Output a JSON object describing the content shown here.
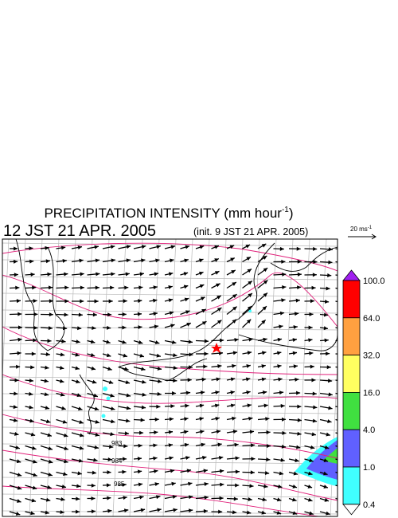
{
  "title": {
    "text": "PRECIPITATION INTENSITY (mm hour",
    "sup": "-1",
    "close": ")"
  },
  "valid_time": "12 JST 21 APR. 2005",
  "init_time": "(init. 9 JST 21 APR. 2005)",
  "wind_scale": {
    "label": "20 ms",
    "sup": "-1"
  },
  "colorbar": {
    "levels": [
      "100.0",
      "64.0",
      "32.0",
      "16.0",
      "4.0",
      "1.0",
      "0.4"
    ],
    "colors": [
      "#a020f0",
      "#ff0000",
      "#ffa040",
      "#ffff60",
      "#40e040",
      "#6060ff",
      "#40ffff",
      "#ffffff"
    ]
  },
  "isobar_labels": [
    "983",
    "984",
    "985"
  ]
}
